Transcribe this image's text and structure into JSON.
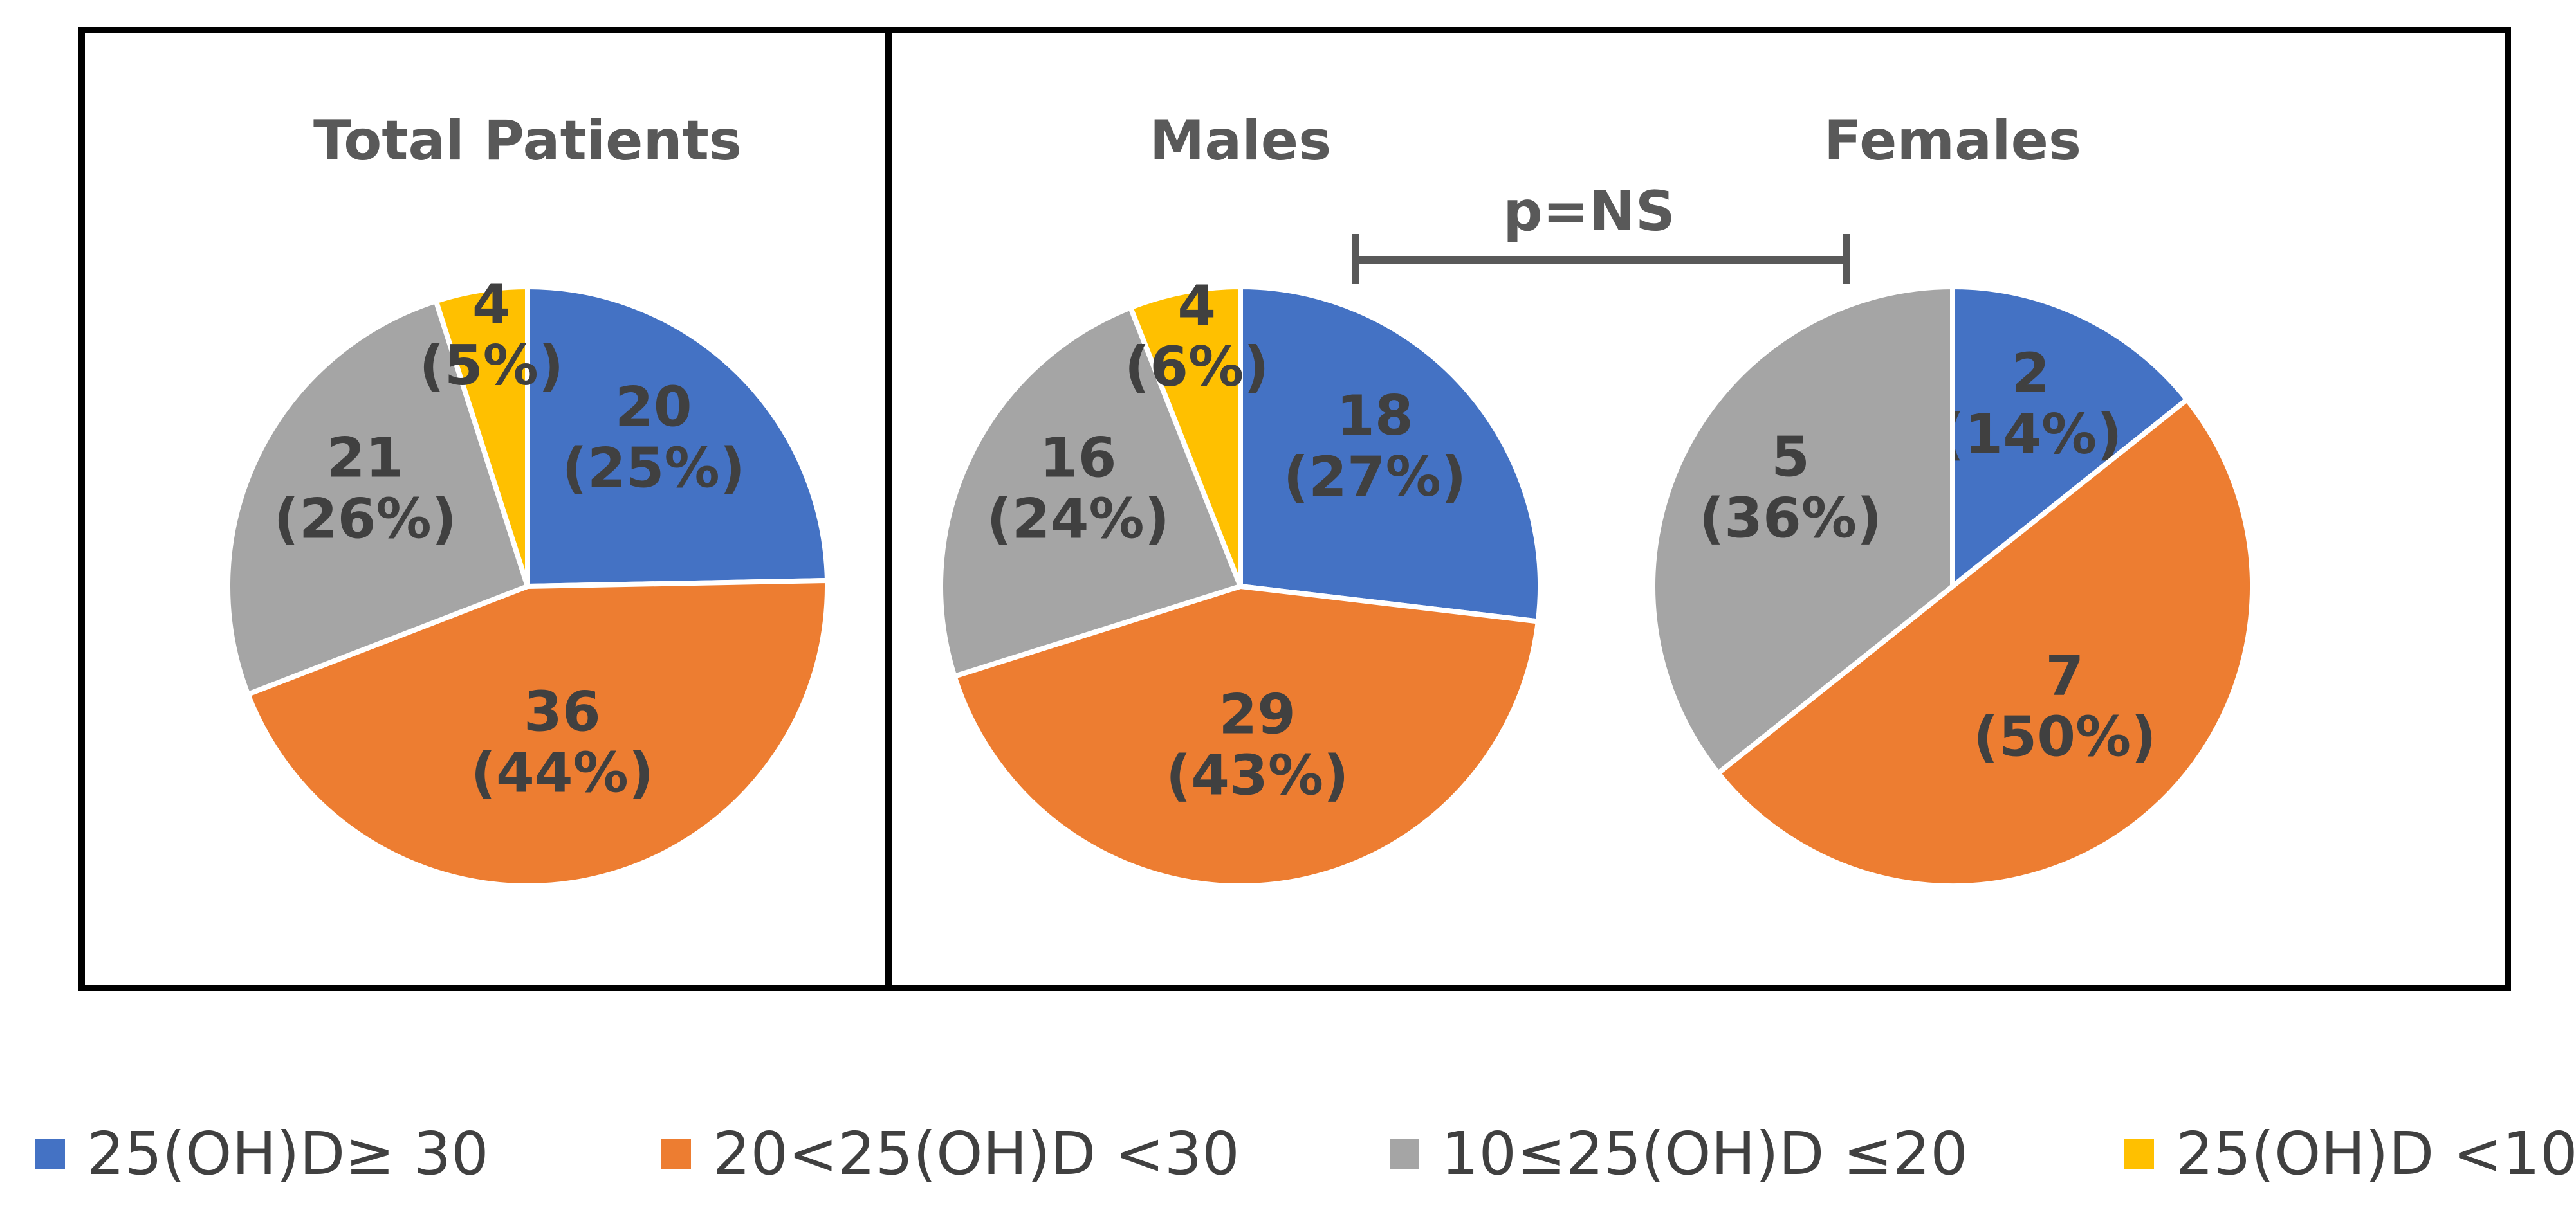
{
  "colors": {
    "blue": "#4472C4",
    "orange": "#ED7D31",
    "gray": "#A5A5A5",
    "yellow": "#FFC000"
  },
  "legend": [
    {
      "label": "25(OH)D≥ 30",
      "color": "#4472C4"
    },
    {
      "label": "20<25(OH)D <30",
      "color": "#ED7D31"
    },
    {
      "label": "10≤25(OH)D ≤20",
      "color": "#A5A5A5"
    },
    {
      "label": "25(OH)D <10",
      "color": "#FFC000"
    }
  ],
  "comparison": {
    "label": "p=NS"
  },
  "chart_data": [
    {
      "type": "pie",
      "title": "Total Patients",
      "categories": [
        "25(OH)D≥ 30",
        "20<25(OH)D <30",
        "10≤25(OH)D ≤20",
        "25(OH)D <10"
      ],
      "values": [
        20,
        36,
        21,
        4
      ],
      "labels": [
        [
          "20",
          "(25%)"
        ],
        [
          "36",
          "(44%)"
        ],
        [
          "21",
          "(26%)"
        ],
        [
          "4",
          "(5%)"
        ]
      ]
    },
    {
      "type": "pie",
      "title": "Males",
      "categories": [
        "25(OH)D≥ 30",
        "20<25(OH)D <30",
        "10≤25(OH)D ≤20",
        "25(OH)D <10"
      ],
      "values": [
        18,
        29,
        16,
        4
      ],
      "labels": [
        [
          "18",
          "(27%)"
        ],
        [
          "29",
          "(43%)"
        ],
        [
          "16",
          "(24%)"
        ],
        [
          "4",
          "(6%)"
        ]
      ]
    },
    {
      "type": "pie",
      "title": "Females",
      "categories": [
        "25(OH)D≥ 30",
        "20<25(OH)D <30",
        "10≤25(OH)D ≤20"
      ],
      "values": [
        2,
        7,
        5
      ],
      "labels": [
        [
          "2",
          "(14%)"
        ],
        [
          "7",
          "(50%)"
        ],
        [
          "5",
          "(36%)"
        ]
      ]
    }
  ]
}
